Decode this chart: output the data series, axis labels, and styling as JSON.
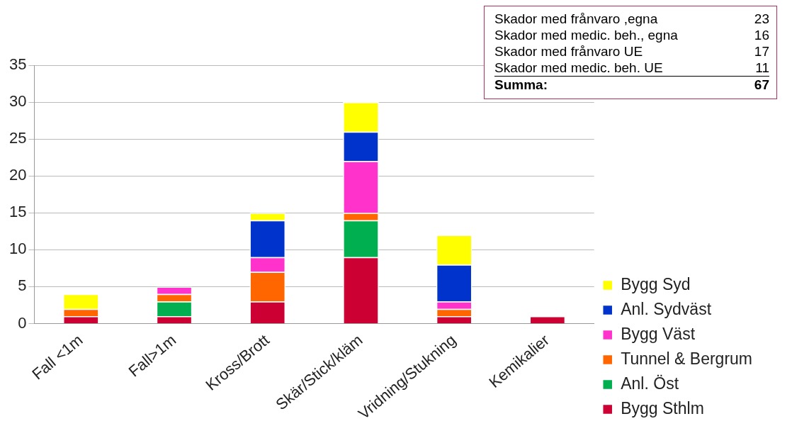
{
  "chart_data": {
    "type": "bar",
    "stacked": true,
    "categories": [
      "Fall <1m",
      "Fall>1m",
      "Kross/Brott",
      "Skär/Stick/kläm",
      "Vridning/Stukning",
      "Kemikalier"
    ],
    "series": [
      {
        "name": "Bygg Sthlm",
        "color": "#cc0033",
        "values": [
          1,
          1,
          3,
          9,
          1,
          1
        ]
      },
      {
        "name": "Anl. Öst",
        "color": "#00b050",
        "values": [
          0,
          2,
          0,
          5,
          0,
          0
        ]
      },
      {
        "name": "Tunnel & Bergrum",
        "color": "#ff6600",
        "values": [
          1,
          1,
          4,
          1,
          1,
          0
        ]
      },
      {
        "name": "Bygg Väst",
        "color": "#ff33cc",
        "values": [
          0,
          1,
          2,
          7,
          1,
          0
        ]
      },
      {
        "name": "Anl. Sydväst",
        "color": "#0033cc",
        "values": [
          0,
          0,
          5,
          4,
          5,
          0
        ]
      },
      {
        "name": "Bygg Syd",
        "color": "#ffff00",
        "values": [
          2,
          0,
          1,
          4,
          4,
          0
        ]
      }
    ],
    "ylim": [
      0,
      35
    ],
    "yticks": [
      0,
      5,
      10,
      15,
      20,
      25,
      30,
      35
    ],
    "grid": "y",
    "legend": "right",
    "annotations": [
      "Skador med frånvaro ,egna",
      "23",
      "Skador med medic. beh., egna",
      "16",
      "Skador med frånvaro UE",
      "17",
      "Skador med medic. beh. UE",
      "11",
      "Summa:",
      "67"
    ]
  }
}
